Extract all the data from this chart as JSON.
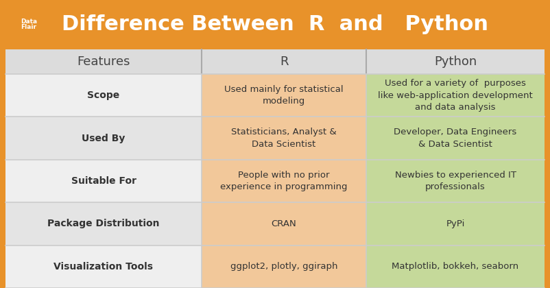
{
  "title": "Difference Between  R  and   Python",
  "header_bg": "#E8922A",
  "header_text_color": "#FFFFFF",
  "table_header_bg": "#DCDCDC",
  "table_header_text_color": "#444444",
  "col1_bg_even": "#EFEFEF",
  "col1_bg_odd": "#E2E2E2",
  "col2_bg": "#F2CBА0",
  "col3_bg": "#C8D8A0",
  "col2_bg_color": "#F2C89A",
  "col3_bg_color": "#C5D99A",
  "features_col": "Features",
  "r_col": "R",
  "python_col": "Python",
  "border_color": "#BBBBBB",
  "text_color": "#333333",
  "rows": [
    {
      "feature": "Scope",
      "r_text": "Used mainly for statistical\nmodeling",
      "python_text": "Used for a variety of  purposes\nlike web-application development\nand data analysis"
    },
    {
      "feature": "Used By",
      "r_text": "Statisticians, Analyst &\nData Scientist",
      "python_text": "Developer, Data Engineers\n& Data Scientist"
    },
    {
      "feature": "Suitable For",
      "r_text": "People with no prior\nexperience in programming",
      "python_text": "Newbies to experienced IT\nprofessionals"
    },
    {
      "feature": "Package Distribution",
      "r_text": "CRAN",
      "python_text": "PyPi"
    },
    {
      "feature": "Visualization Tools",
      "r_text": "ggplot2, plotly, ggiraph",
      "python_text": "Matplotlib, bokkeh, seaborn"
    }
  ]
}
